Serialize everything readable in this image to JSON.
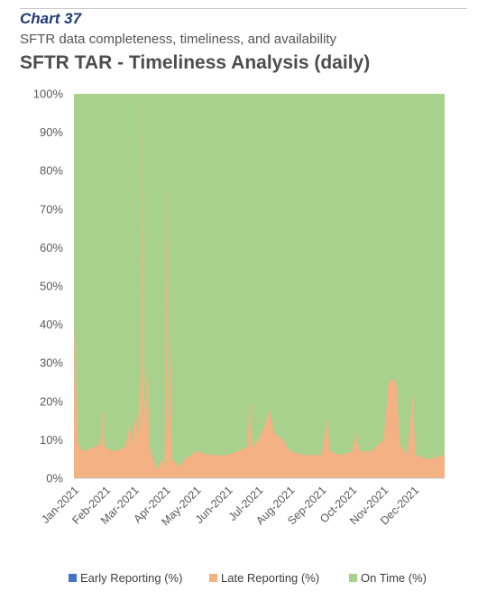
{
  "header": {
    "chart_number": "Chart 37",
    "subtitle": "SFTR data completeness, timeliness, and availability"
  },
  "colors": {
    "early": "#4472c4",
    "late": "#f4b183",
    "on_time": "#a9d18e"
  },
  "chart_data": {
    "type": "area",
    "stacked": true,
    "title": "SFTR TAR - Timeliness Analysis (daily)",
    "y_tick_labels": [
      "0%",
      "10%",
      "20%",
      "30%",
      "40%",
      "50%",
      "60%",
      "70%",
      "80%",
      "90%",
      "100%"
    ],
    "ylim": [
      0,
      100
    ],
    "x_tick_labels": [
      "Jan-2021",
      "Feb-2021",
      "Mar-2021",
      "Apr-2021",
      "May-2021",
      "Jun-2021",
      "Jul-2021",
      "Aug-2021",
      "Sep-2021",
      "Oct-2021",
      "Nov-2021",
      "Dec-2021"
    ],
    "grid": false,
    "legend_position": "bottom",
    "series": [
      {
        "name": "Early Reporting (%)",
        "values": "approx. 0 on all days"
      },
      {
        "name": "Late Reporting (%)",
        "points": [
          [
            "2021-01-01",
            41
          ],
          [
            "2021-01-03",
            25
          ],
          [
            "2021-01-05",
            9
          ],
          [
            "2021-01-10",
            7
          ],
          [
            "2021-01-20",
            8
          ],
          [
            "2021-01-27",
            9
          ],
          [
            "2021-01-29",
            18
          ],
          [
            "2021-01-31",
            8
          ],
          [
            "2021-02-10",
            7
          ],
          [
            "2021-02-20",
            8
          ],
          [
            "2021-02-25",
            14
          ],
          [
            "2021-02-27",
            9
          ],
          [
            "2021-03-03",
            18
          ],
          [
            "2021-03-05",
            10
          ],
          [
            "2021-03-08",
            30
          ],
          [
            "2021-03-09",
            100
          ],
          [
            "2021-03-10",
            12
          ],
          [
            "2021-03-14",
            30
          ],
          [
            "2021-03-16",
            8
          ],
          [
            "2021-03-20",
            5
          ],
          [
            "2021-03-24",
            2
          ],
          [
            "2021-03-28",
            5
          ],
          [
            "2021-03-31",
            3
          ],
          [
            "2021-04-02",
            78
          ],
          [
            "2021-04-03",
            8
          ],
          [
            "2021-04-06",
            36
          ],
          [
            "2021-04-07",
            5
          ],
          [
            "2021-04-15",
            3
          ],
          [
            "2021-04-20",
            5
          ],
          [
            "2021-05-01",
            7
          ],
          [
            "2021-05-15",
            6
          ],
          [
            "2021-06-01",
            6
          ],
          [
            "2021-06-10",
            7
          ],
          [
            "2021-06-20",
            8
          ],
          [
            "2021-06-23",
            20
          ],
          [
            "2021-06-25",
            8
          ],
          [
            "2021-07-01",
            10
          ],
          [
            "2021-07-08",
            14
          ],
          [
            "2021-07-12",
            18
          ],
          [
            "2021-07-16",
            12
          ],
          [
            "2021-07-25",
            10
          ],
          [
            "2021-08-01",
            7
          ],
          [
            "2021-08-15",
            6
          ],
          [
            "2021-09-01",
            6
          ],
          [
            "2021-09-07",
            16
          ],
          [
            "2021-09-09",
            7
          ],
          [
            "2021-09-20",
            6
          ],
          [
            "2021-10-01",
            7
          ],
          [
            "2021-10-06",
            12
          ],
          [
            "2021-10-08",
            7
          ],
          [
            "2021-10-20",
            7
          ],
          [
            "2021-11-01",
            10
          ],
          [
            "2021-11-06",
            25
          ],
          [
            "2021-11-10",
            26
          ],
          [
            "2021-11-14",
            24
          ],
          [
            "2021-11-17",
            9
          ],
          [
            "2021-11-24",
            6
          ],
          [
            "2021-11-30",
            22
          ],
          [
            "2021-12-02",
            6
          ],
          [
            "2021-12-15",
            5
          ],
          [
            "2021-12-31",
            6
          ]
        ]
      },
      {
        "name": "On Time (%)",
        "values": "remainder to 100%"
      }
    ]
  }
}
